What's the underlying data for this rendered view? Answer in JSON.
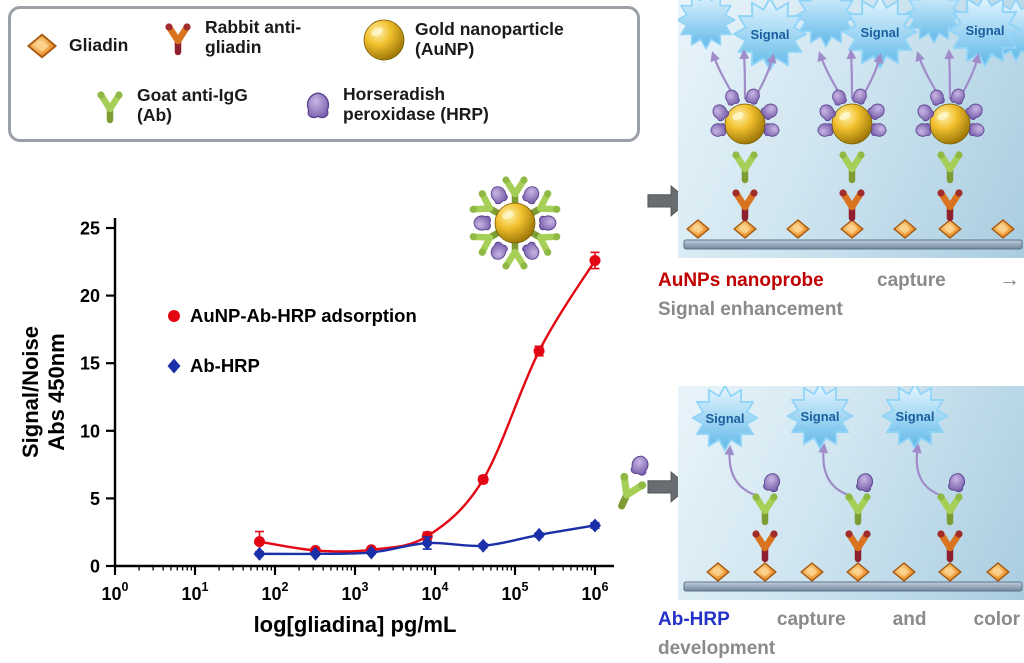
{
  "legend_box": {
    "items": [
      {
        "name": "gliadin",
        "label": "Gliadin"
      },
      {
        "name": "rabbit-anti-gliadin",
        "label": "Rabbit anti-gliadin"
      },
      {
        "name": "gold-nanoparticle",
        "label": "Gold nanoparticle (AuNP)"
      },
      {
        "name": "goat-anti-igg",
        "label": "Goat anti-IgG (Ab)"
      },
      {
        "name": "hrp",
        "label": "Horseradish peroxidase (HRP)"
      }
    ]
  },
  "chart_data": {
    "type": "scatter",
    "title": "",
    "xlabel": "log[gliadina] pg/mL",
    "ylabel_lines": [
      "Signal/Noise",
      "Abs 450nm"
    ],
    "x_scale": "log10",
    "x_tick_exponents": [
      0,
      1,
      2,
      3,
      4,
      5,
      6
    ],
    "y_ticks": [
      0,
      5,
      10,
      15,
      20,
      25
    ],
    "ylim": [
      0,
      25
    ],
    "grid": false,
    "legend_position": "inside-left",
    "series": [
      {
        "name": "AuNP-Ab-HRP adsorption",
        "color": "#e30613",
        "marker": "circle",
        "x": [
          64,
          320,
          1600,
          8000,
          40000,
          200000,
          1000000
        ],
        "y": [
          1.8,
          1.15,
          1.2,
          2.2,
          6.4,
          15.9,
          22.6
        ],
        "yerr": [
          0.75,
          0.15,
          0.15,
          0.3,
          0.25,
          0.35,
          0.6
        ]
      },
      {
        "name": "Ab-HRP",
        "color": "#1b2fa8",
        "marker": "diamond",
        "x": [
          64,
          320,
          1600,
          8000,
          40000,
          200000,
          1000000
        ],
        "y": [
          0.9,
          0.9,
          1.0,
          1.7,
          1.5,
          2.3,
          3.0
        ],
        "yerr": [
          0.12,
          0.1,
          0.1,
          0.45,
          0.15,
          0.15,
          0.2
        ]
      }
    ]
  },
  "right_panels": {
    "signal_label": "Signal",
    "top_caption": {
      "part1": "AuNPs nanoprobe",
      "part2": "capture",
      "arrow": "→",
      "line2": "Signal enhancement"
    },
    "bottom_caption": {
      "part1": "Ab-HRP",
      "part2": "capture",
      "part3": "and",
      "part4": "color",
      "line2": "development"
    }
  },
  "colors": {
    "red_series": "#e30613",
    "blue_series": "#1b2fa8",
    "caption_red": "#c00000",
    "caption_blue": "#2431c8",
    "caption_gray": "#8a8a8a",
    "gold": "#f2c02e",
    "hrp_purple": "#6f55a5",
    "gliadin_orange": "#f0a040",
    "signal_blue": "#5fb8e8"
  }
}
